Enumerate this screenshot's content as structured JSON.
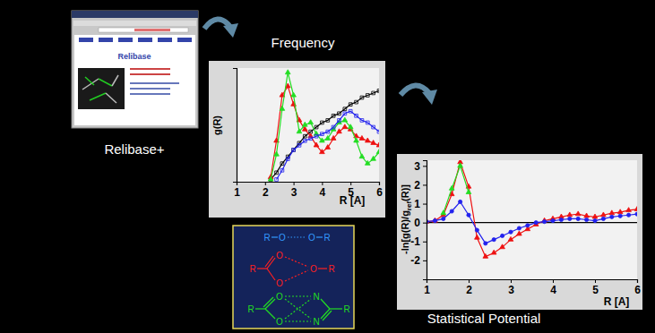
{
  "screenshot": {
    "caption": "Relibase+",
    "heading": "Relibase"
  },
  "diagram": {
    "hydroxyl_pair": {
      "labels": [
        "R",
        "O",
        "O",
        "R"
      ],
      "color": "#3399ff"
    },
    "carboxylate_hydroxyl": {
      "labels": [
        "R",
        "O",
        "O",
        "O",
        "R"
      ],
      "color": "#ff2020"
    },
    "carboxylate_amidine": {
      "labels": [
        "R",
        "O",
        "O",
        "N",
        "N",
        "R"
      ],
      "color": "#22dd22"
    }
  },
  "chart_data": [
    {
      "type": "line",
      "title": "Frequency",
      "x_label": "R [A]",
      "y_label": [
        "g(R)"
      ],
      "x": [
        2.0,
        2.2,
        2.4,
        2.6,
        2.8,
        3.0,
        3.2,
        3.4,
        3.6,
        3.8,
        4.0,
        4.2,
        4.4,
        4.6,
        4.8,
        5.0,
        5.2,
        5.4,
        5.6,
        5.8,
        6.0
      ],
      "series": [
        {
          "color": "#000000",
          "marker": "square",
          "values": [
            null,
            0.05,
            0.2,
            0.4,
            0.55,
            0.7,
            0.85,
            1.0,
            1.1,
            1.2,
            1.3,
            1.35,
            1.45,
            1.5,
            1.6,
            1.7,
            1.75,
            1.85,
            1.9,
            1.95,
            2.0
          ]
        },
        {
          "color": "#ee1111",
          "marker": "triangle",
          "values": [
            null,
            0.1,
            0.9,
            1.9,
            2.1,
            1.7,
            1.35,
            1.15,
            1.0,
            0.8,
            0.65,
            0.75,
            0.95,
            1.1,
            1.2,
            1.15,
            1.0,
            0.95,
            0.9,
            0.85,
            0.8
          ]
        },
        {
          "color": "#22dd22",
          "marker": "triangle",
          "values": [
            null,
            0.05,
            0.6,
            1.6,
            2.4,
            1.9,
            1.1,
            1.25,
            1.3,
            1.05,
            0.9,
            0.95,
            1.15,
            1.3,
            1.35,
            1.2,
            0.9,
            0.55,
            0.4,
            0.5,
            0.65
          ]
        },
        {
          "color": "#2222ee",
          "marker": "square",
          "values": [
            null,
            null,
            0.05,
            0.25,
            0.5,
            0.7,
            0.8,
            0.9,
            0.95,
            1.0,
            1.05,
            1.1,
            1.2,
            1.35,
            1.5,
            1.55,
            1.45,
            1.35,
            1.3,
            1.2,
            1.1
          ]
        }
      ],
      "xlim": [
        1,
        6
      ],
      "xticks": [
        1,
        2,
        3,
        4,
        5,
        6
      ],
      "ylim": [
        0,
        2.5
      ],
      "tick_labels": "x",
      "grid": false
    },
    {
      "type": "line",
      "title": "Statistical Potential",
      "x_label": "R [A]",
      "y_label": [
        "-ln[g(R)/g",
        "ref",
        "(R)]"
      ],
      "x": [
        1.0,
        1.2,
        1.4,
        1.6,
        1.8,
        2.0,
        2.2,
        2.4,
        2.6,
        2.8,
        3.0,
        3.2,
        3.4,
        3.6,
        3.8,
        4.0,
        4.2,
        4.4,
        4.6,
        4.8,
        5.0,
        5.2,
        5.4,
        5.6,
        5.8,
        6.0
      ],
      "series": [
        {
          "color": "#ee1111",
          "marker": "triangle",
          "values": [
            0.05,
            0.1,
            0.4,
            1.5,
            3.2,
            1.9,
            -0.8,
            -1.8,
            -1.6,
            -1.3,
            -0.9,
            -0.6,
            -0.35,
            -0.1,
            0.1,
            0.2,
            0.3,
            0.4,
            0.45,
            0.35,
            0.3,
            0.4,
            0.5,
            0.55,
            0.65,
            0.7
          ]
        },
        {
          "color": "#22dd22",
          "marker": "triangle",
          "values": [
            null,
            null,
            0.5,
            1.8,
            3.0,
            1.6,
            null,
            null,
            null,
            null,
            null,
            null,
            null,
            null,
            null,
            null,
            null,
            null,
            null,
            null,
            null,
            null,
            null,
            null,
            null,
            null
          ]
        },
        {
          "color": "#2222ee",
          "marker": "circle",
          "values": [
            0.05,
            0.1,
            0.2,
            0.6,
            1.1,
            0.4,
            -0.4,
            -1.1,
            -0.9,
            -0.7,
            -0.5,
            -0.3,
            -0.15,
            0.0,
            0.05,
            0.1,
            0.15,
            0.2,
            0.2,
            0.15,
            0.1,
            0.2,
            0.3,
            0.35,
            0.4,
            0.45
          ]
        }
      ],
      "xlim": [
        1,
        6
      ],
      "xticks": [
        1,
        2,
        3,
        4,
        5,
        6
      ],
      "ylim": [
        -3,
        3.3
      ],
      "yticks": [
        -2,
        -1,
        0,
        1,
        2,
        3
      ],
      "reference_line": 0,
      "grid": false
    }
  ]
}
